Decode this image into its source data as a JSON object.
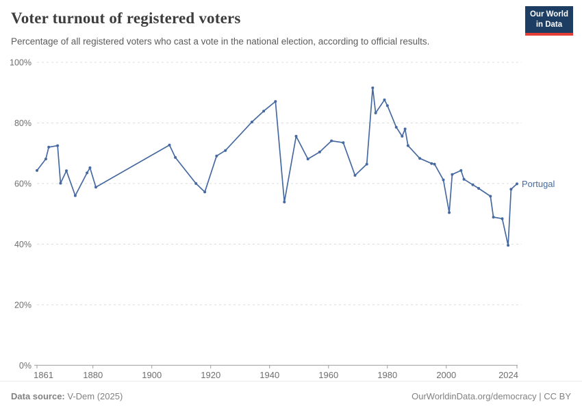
{
  "header": {
    "title": "Voter turnout of registered voters",
    "subtitle": "Percentage of all registered voters who cast a vote in the national election, according to official results.",
    "logo": {
      "line1": "Our World",
      "line2": "in Data"
    }
  },
  "footer": {
    "source_label": "Data source:",
    "source_value": " V-Dem (2025)",
    "right_text": "OurWorldinData.org/democracy | CC BY"
  },
  "colors": {
    "line": "#4669A0",
    "grid": "#dcdcdc",
    "axis": "#9a9a9a",
    "tick_text": "#6e6e6e",
    "entity_label": "#4669A0"
  },
  "chart_data": {
    "type": "line",
    "title": "Voter turnout of registered voters",
    "xlabel": "",
    "ylabel": "",
    "xlim": [
      1861,
      2024
    ],
    "ylim": [
      0,
      100
    ],
    "x_ticks": [
      1861,
      1880,
      1900,
      1920,
      1940,
      1960,
      1980,
      2000,
      2024
    ],
    "y_ticks": [
      0,
      20,
      40,
      60,
      80,
      100
    ],
    "y_tick_suffix": "%",
    "grid": "horizontal-dashed",
    "legend_position": "end-of-line-label",
    "entity_label": "Portugal",
    "series": [
      {
        "name": "Portugal",
        "color": "#4669A0",
        "points": [
          [
            1861,
            64.3
          ],
          [
            1864,
            68.1
          ],
          [
            1865,
            72.0
          ],
          [
            1868,
            72.5
          ],
          [
            1869,
            60.1
          ],
          [
            1871,
            64.2
          ],
          [
            1874,
            56.0
          ],
          [
            1878,
            63.5
          ],
          [
            1879,
            65.2
          ],
          [
            1881,
            58.8
          ],
          [
            1906,
            72.7
          ],
          [
            1908,
            68.6
          ],
          [
            1915,
            60.0
          ],
          [
            1918,
            57.2
          ],
          [
            1922,
            69.1
          ],
          [
            1925,
            70.9
          ],
          [
            1934,
            80.3
          ],
          [
            1938,
            83.9
          ],
          [
            1942,
            87.1
          ],
          [
            1945,
            53.9
          ],
          [
            1949,
            75.6
          ],
          [
            1953,
            68.1
          ],
          [
            1957,
            70.4
          ],
          [
            1961,
            74.1
          ],
          [
            1965,
            73.5
          ],
          [
            1969,
            62.7
          ],
          [
            1973,
            66.4
          ],
          [
            1975,
            91.6
          ],
          [
            1976,
            83.3
          ],
          [
            1979,
            87.6
          ],
          [
            1980,
            85.7
          ],
          [
            1983,
            78.6
          ],
          [
            1985,
            75.6
          ],
          [
            1986,
            78.0
          ],
          [
            1987,
            72.5
          ],
          [
            1991,
            68.3
          ],
          [
            1995,
            66.6
          ],
          [
            1996,
            66.4
          ],
          [
            1999,
            61.2
          ],
          [
            2001,
            50.4
          ],
          [
            2002,
            63.0
          ],
          [
            2005,
            64.3
          ],
          [
            2006,
            61.4
          ],
          [
            2009,
            59.6
          ],
          [
            2011,
            58.4
          ],
          [
            2015,
            55.8
          ],
          [
            2016,
            48.9
          ],
          [
            2019,
            48.4
          ],
          [
            2021,
            39.6
          ],
          [
            2022,
            58.1
          ],
          [
            2024,
            59.9
          ]
        ]
      }
    ]
  }
}
